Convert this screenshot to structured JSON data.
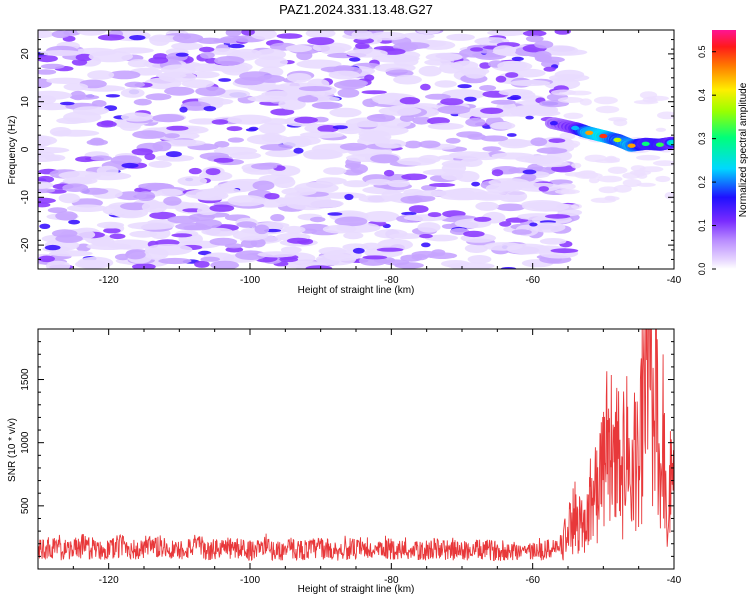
{
  "title": "PAZ1.2024.331.13.48.G27",
  "chart_data": [
    {
      "type": "heatmap",
      "title": "PAZ1.2024.331.13.48.G27",
      "xlabel": "Height of straight line (km)",
      "ylabel": "Frequency (Hz)",
      "xlim": [
        -130,
        -40
      ],
      "ylim": [
        -25,
        25
      ],
      "x_ticks": [
        -120,
        -100,
        -80,
        -60,
        -40
      ],
      "x_tick_labels": [
        "-120",
        "-100",
        "-80",
        "-60",
        "-40"
      ],
      "y_ticks": [
        -20,
        -10,
        0,
        10,
        20
      ],
      "y_tick_labels": [
        "-20",
        "-10",
        "0",
        "10",
        "20"
      ],
      "colorbar": {
        "label": "Normalized spectral amplitude",
        "range": [
          0.0,
          0.55
        ],
        "ticks": [
          0.0,
          0.1,
          0.2,
          0.3,
          0.4,
          0.5
        ],
        "tick_labels": [
          "0.0",
          "0.1",
          "0.2",
          "0.3",
          "0.4",
          "0.5"
        ]
      },
      "noise_region": {
        "x": [
          -130,
          -56
        ],
        "amplitude": 0.08
      },
      "signal_ridge": [
        {
          "x": -57,
          "f": 5.5,
          "amp": 0.15
        },
        {
          "x": -54,
          "f": 4.5,
          "amp": 0.22
        },
        {
          "x": -52,
          "f": 3.5,
          "amp": 0.45
        },
        {
          "x": -50,
          "f": 2.8,
          "amp": 0.5
        },
        {
          "x": -48,
          "f": 2.0,
          "amp": 0.38
        },
        {
          "x": -46,
          "f": 0.8,
          "amp": 0.45
        },
        {
          "x": -44,
          "f": 1.2,
          "amp": 0.3
        },
        {
          "x": -42,
          "f": 1.0,
          "amp": 0.32
        },
        {
          "x": -40,
          "f": 1.5,
          "amp": 0.25
        }
      ]
    },
    {
      "type": "line",
      "xlabel": "Height of straight line (km)",
      "ylabel": "SNR (10 * v/v)",
      "xlim": [
        -130,
        -40
      ],
      "ylim": [
        0,
        1900
      ],
      "x_ticks": [
        -120,
        -100,
        -80,
        -60,
        -40
      ],
      "x_tick_labels": [
        "-120",
        "-100",
        "-80",
        "-60",
        "-40"
      ],
      "y_ticks": [
        500,
        1000,
        1500
      ],
      "y_tick_labels": [
        "500",
        "1000",
        "1500"
      ],
      "color": "#e8383a",
      "x": [
        -130,
        -128,
        -126,
        -124,
        -122,
        -120,
        -118,
        -116,
        -114,
        -112,
        -110,
        -108,
        -106,
        -104,
        -102,
        -100,
        -98,
        -96,
        -94,
        -92,
        -90,
        -88,
        -86,
        -84,
        -82,
        -80,
        -78,
        -76,
        -74,
        -72,
        -70,
        -68,
        -66,
        -64,
        -62,
        -60,
        -58,
        -56,
        -55,
        -54,
        -53,
        -52,
        -51,
        -50,
        -49.5,
        -49,
        -48.5,
        -48,
        -47.5,
        -47,
        -46.5,
        -46,
        -45.5,
        -45,
        -44.5,
        -44,
        -43.5,
        -43,
        -42.5,
        -42,
        -41.5,
        -41,
        -40.5,
        -40
      ],
      "values": [
        150,
        170,
        140,
        180,
        160,
        150,
        190,
        140,
        170,
        160,
        150,
        180,
        140,
        170,
        160,
        150,
        170,
        140,
        160,
        150,
        170,
        140,
        160,
        150,
        140,
        160,
        150,
        140,
        160,
        150,
        140,
        150,
        150,
        140,
        150,
        140,
        150,
        180,
        280,
        420,
        350,
        520,
        600,
        800,
        1000,
        1150,
        700,
        1100,
        500,
        950,
        1000,
        550,
        1050,
        600,
        1200,
        1300,
        1880,
        900,
        1500,
        700,
        1100,
        200,
        700,
        550
      ]
    }
  ]
}
